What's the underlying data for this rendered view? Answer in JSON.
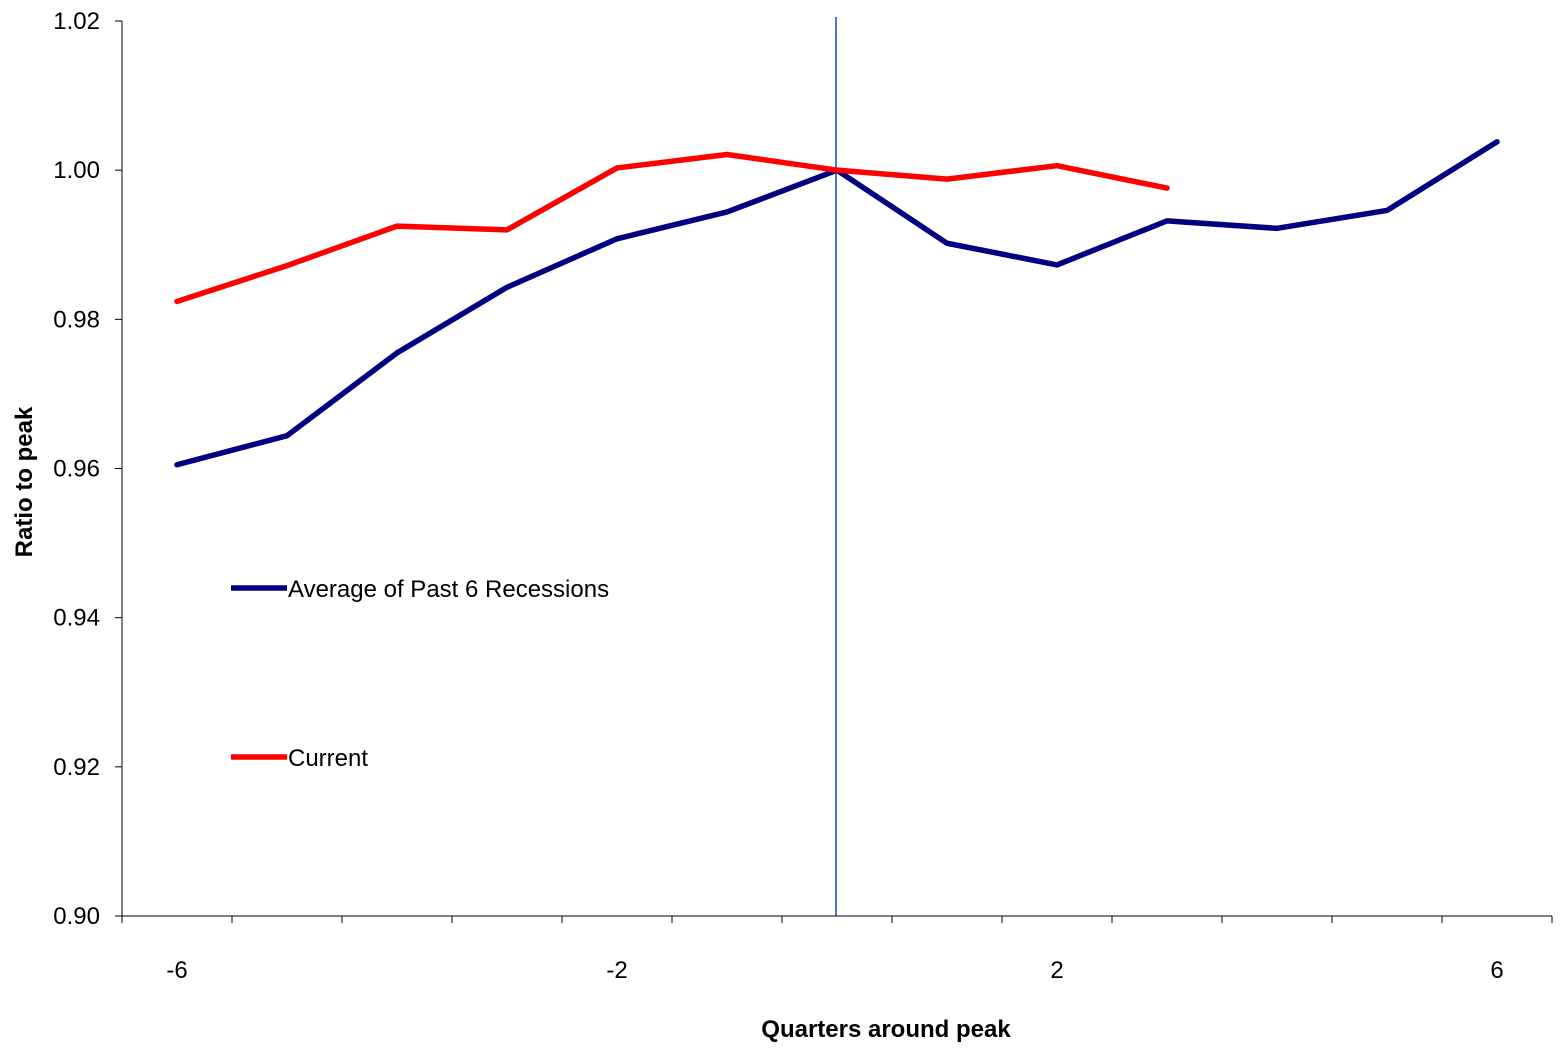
{
  "chart_data": {
    "type": "line",
    "title": "",
    "xlabel": "Quarters around peak",
    "ylabel": "Ratio to peak",
    "xlim": [
      -6.5,
      6.5
    ],
    "ylim": [
      0.9,
      1.02
    ],
    "y_ticks": [
      "0.90",
      "0.92",
      "0.94",
      "0.96",
      "0.98",
      "1.00",
      "1.02"
    ],
    "x_tick_labels": [
      -6,
      -2,
      2,
      6
    ],
    "grid": false,
    "reference_line_x": 0,
    "reference_line_color": "#4a7cc0",
    "legend_position": "left-center",
    "series": [
      {
        "name": "Average of Past 6 Recessions",
        "color": "#000080",
        "x": [
          -6,
          -5,
          -4,
          -3,
          -2,
          -1,
          0,
          1,
          2,
          3,
          4,
          5,
          6
        ],
        "values": [
          0.9605,
          0.9644,
          0.9755,
          0.9843,
          0.9908,
          0.9944,
          1.0,
          0.9902,
          0.9873,
          0.9932,
          0.9922,
          0.9946,
          1.0038
        ]
      },
      {
        "name": "Current",
        "color": "#ff0000",
        "x": [
          -6,
          -5,
          -4,
          -3,
          -2,
          -1,
          0,
          1,
          2,
          3
        ],
        "values": [
          0.9824,
          0.9872,
          0.9925,
          0.992,
          1.0003,
          1.0021,
          1.0,
          0.9988,
          1.0006,
          0.9976
        ]
      }
    ]
  }
}
